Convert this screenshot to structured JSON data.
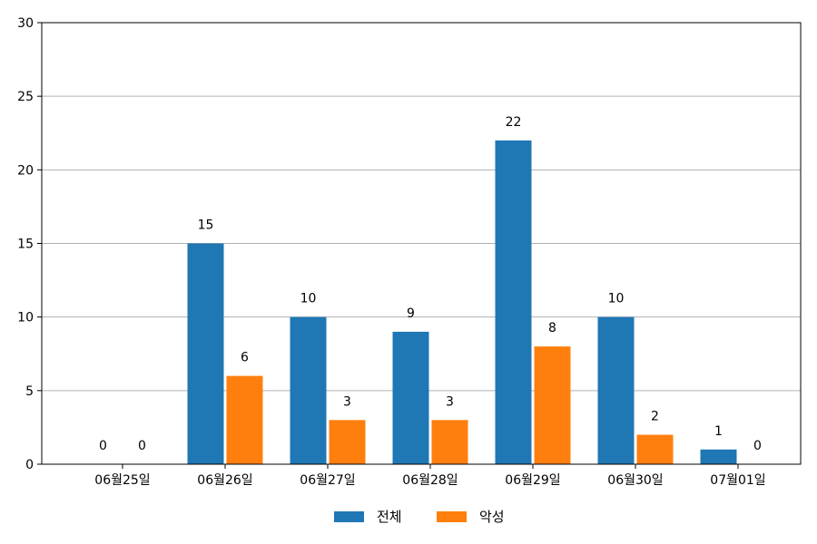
{
  "chart_data": {
    "type": "bar",
    "categories": [
      "06월25일",
      "06월26일",
      "06월27일",
      "06월28일",
      "06월29일",
      "06월30일",
      "07월01일"
    ],
    "series": [
      {
        "name": "전체",
        "values": [
          0,
          15,
          10,
          9,
          22,
          10,
          1
        ]
      },
      {
        "name": "악성",
        "values": [
          0,
          6,
          3,
          3,
          8,
          2,
          0
        ]
      }
    ],
    "ylim": [
      0,
      30
    ],
    "yticks": [
      0,
      5,
      10,
      15,
      20,
      25,
      30
    ],
    "grid": "horizontal",
    "legend_position": "bottom-center",
    "colors": {
      "전체": "#1f77b4",
      "악성": "#ff7f0e",
      "grid": "#b0b0b0"
    }
  }
}
